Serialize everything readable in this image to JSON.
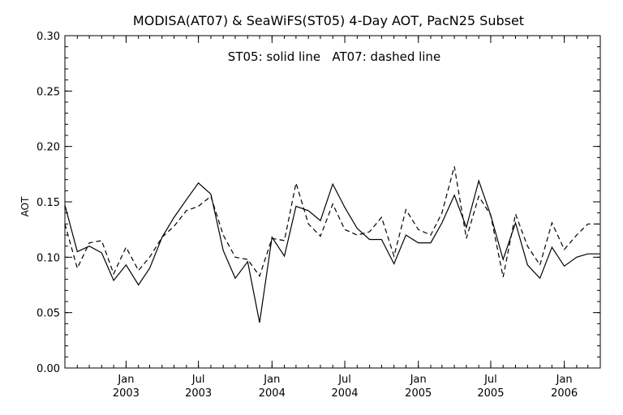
{
  "chart_data": {
    "type": "line",
    "title": "MODISA(AT07) & SeaWiFS(ST05) 4-Day AOT, PacN25 Subset",
    "subtitle": "ST05: solid line   AT07: dashed line",
    "ylabel": "AOT",
    "xlabel": "",
    "ylim": [
      0.0,
      0.3
    ],
    "yticks": [
      "0.00",
      "0.05",
      "0.10",
      "0.15",
      "0.20",
      "0.25",
      "0.30"
    ],
    "xlim": [
      "2002-08-01",
      "2006-04-01"
    ],
    "xticks": [
      {
        "date": "2003-01-01",
        "month": "Jan",
        "year": "2003"
      },
      {
        "date": "2003-07-01",
        "month": "Jul",
        "year": "2003"
      },
      {
        "date": "2004-01-01",
        "month": "Jan",
        "year": "2004"
      },
      {
        "date": "2004-07-01",
        "month": "Jul",
        "year": "2004"
      },
      {
        "date": "2005-01-01",
        "month": "Jan",
        "year": "2005"
      },
      {
        "date": "2005-07-01",
        "month": "Jul",
        "year": "2005"
      },
      {
        "date": "2006-01-01",
        "month": "Jan",
        "year": "2006"
      }
    ],
    "x": [
      "2002-08-01",
      "2002-09-01",
      "2002-10-01",
      "2002-11-01",
      "2002-12-01",
      "2003-01-01",
      "2003-02-01",
      "2003-03-01",
      "2003-04-01",
      "2003-05-01",
      "2003-06-01",
      "2003-07-01",
      "2003-08-01",
      "2003-09-01",
      "2003-10-01",
      "2003-11-01",
      "2003-12-01",
      "2004-01-01",
      "2004-02-01",
      "2004-03-01",
      "2004-04-01",
      "2004-05-01",
      "2004-06-01",
      "2004-07-01",
      "2004-08-01",
      "2004-09-01",
      "2004-10-01",
      "2004-11-01",
      "2004-12-01",
      "2005-01-01",
      "2005-02-01",
      "2005-03-01",
      "2005-04-01",
      "2005-05-01",
      "2005-06-01",
      "2005-07-01",
      "2005-08-01",
      "2005-09-01",
      "2005-10-01",
      "2005-11-01",
      "2005-12-01",
      "2006-01-01",
      "2006-02-01",
      "2006-03-01",
      "2006-04-01"
    ],
    "series": [
      {
        "name": "ST05",
        "style": "solid",
        "values": [
          0.147,
          0.105,
          0.11,
          0.104,
          0.079,
          0.093,
          0.075,
          0.09,
          0.118,
          0.136,
          0.152,
          0.167,
          0.157,
          0.106,
          0.081,
          0.096,
          0.041,
          0.118,
          0.101,
          0.146,
          0.142,
          0.133,
          0.166,
          0.145,
          0.126,
          0.116,
          0.116,
          0.094,
          0.12,
          0.113,
          0.113,
          0.131,
          0.156,
          0.127,
          0.169,
          0.138,
          0.098,
          0.131,
          0.093,
          0.081,
          0.109,
          0.092,
          0.1,
          0.103,
          0.103
        ]
      },
      {
        "name": "AT07",
        "style": "dashed",
        "values": [
          0.13,
          0.09,
          0.113,
          0.115,
          0.085,
          0.109,
          0.088,
          0.1,
          0.118,
          0.128,
          0.142,
          0.146,
          0.155,
          0.12,
          0.1,
          0.098,
          0.083,
          0.117,
          0.115,
          0.167,
          0.13,
          0.119,
          0.148,
          0.125,
          0.12,
          0.123,
          0.136,
          0.101,
          0.143,
          0.125,
          0.12,
          0.14,
          0.182,
          0.117,
          0.155,
          0.138,
          0.082,
          0.139,
          0.11,
          0.093,
          0.131,
          0.107,
          0.12,
          0.13,
          0.13
        ]
      }
    ],
    "grid": false,
    "legend": "none"
  }
}
